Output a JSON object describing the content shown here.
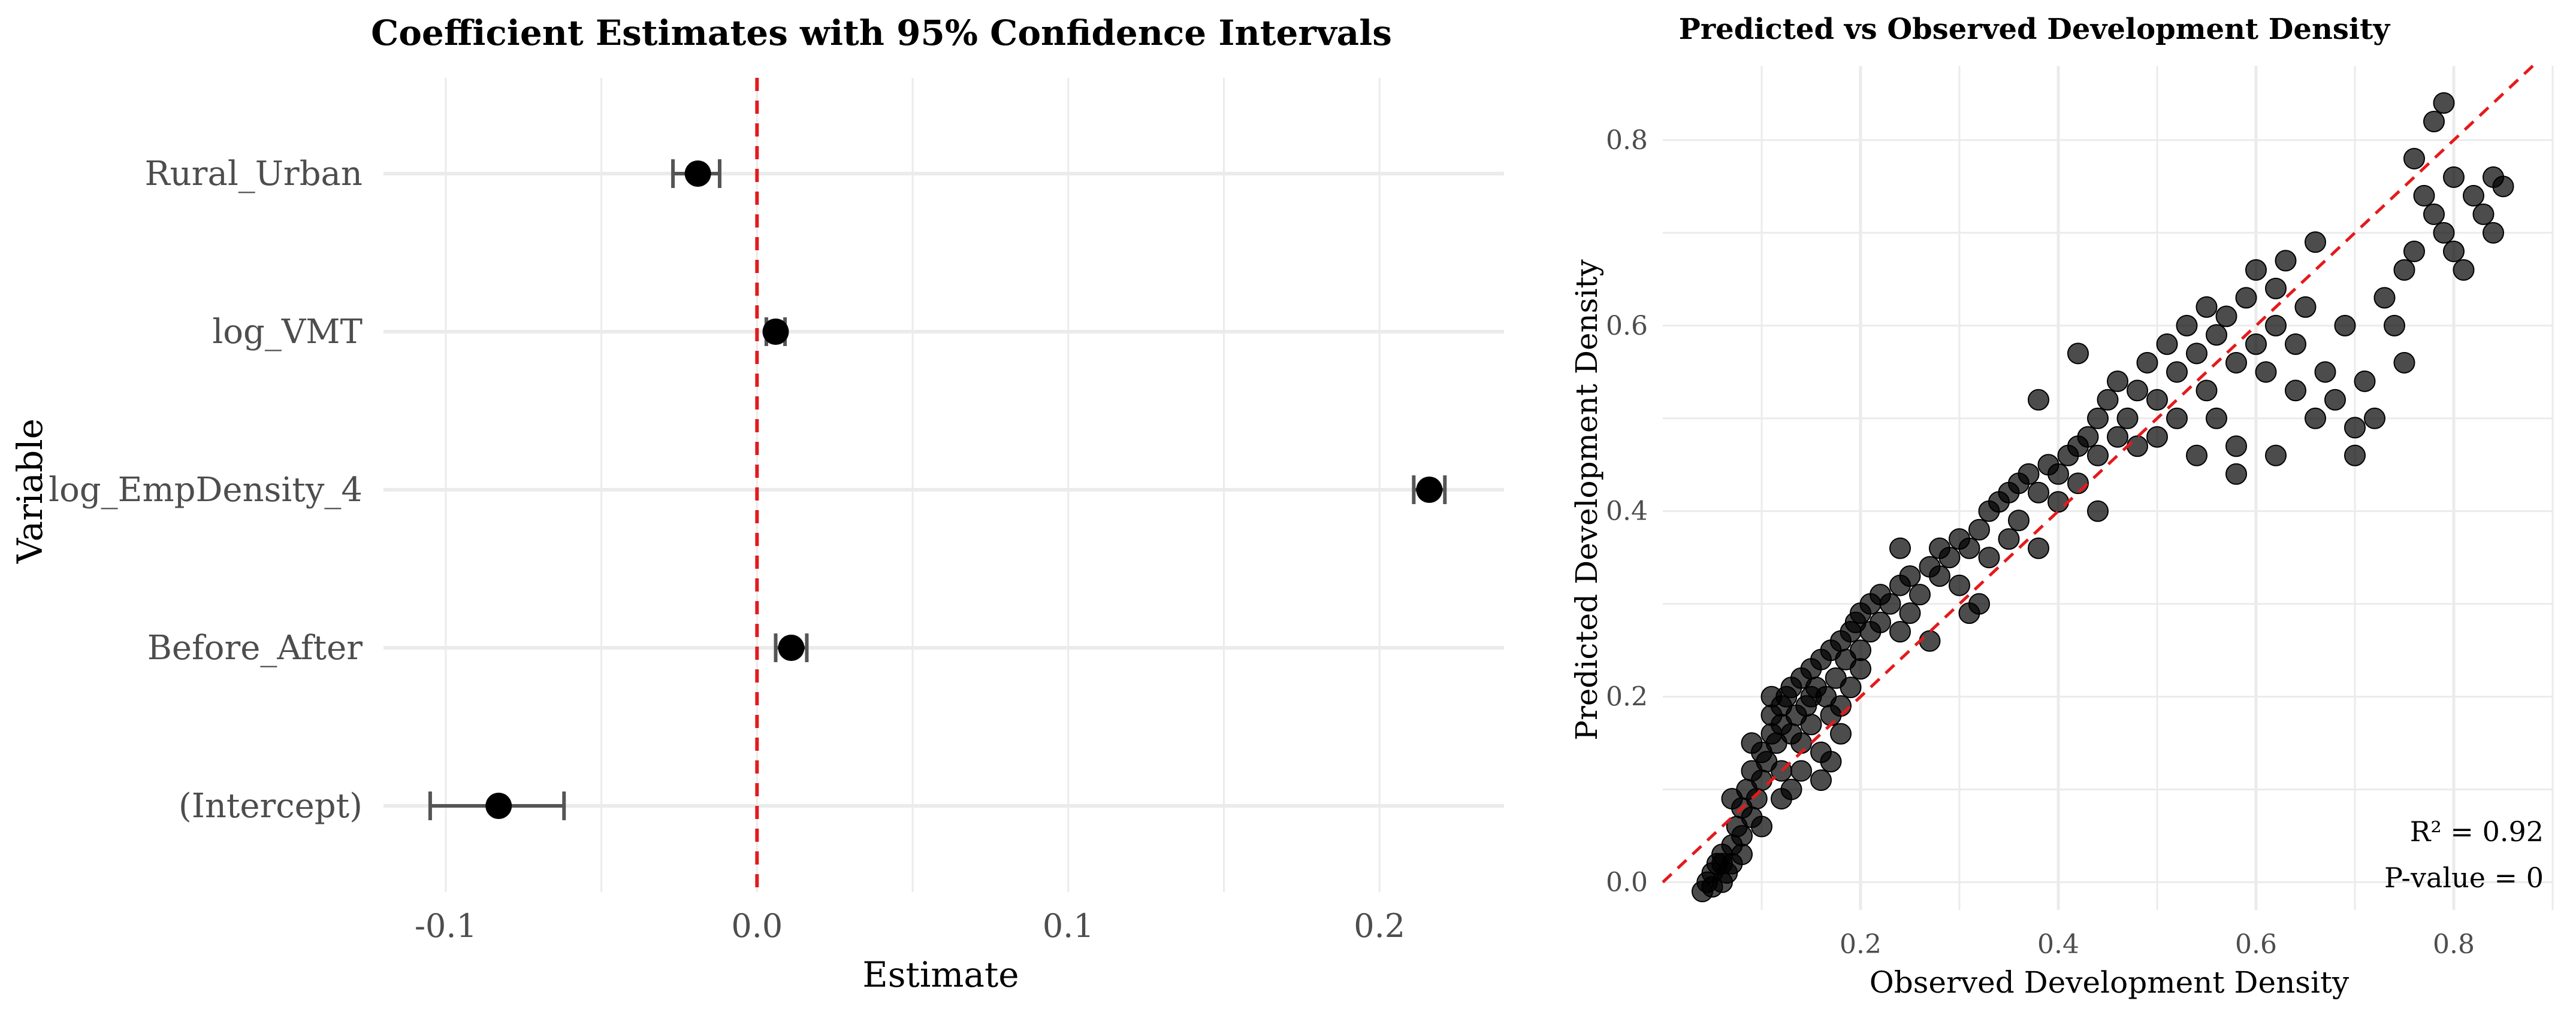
{
  "chart_data": [
    {
      "type": "errorbar",
      "title": "Coefficient Estimates with 95% Confidence Intervals",
      "xlabel": "Estimate",
      "ylabel": "Variable",
      "xlim": [
        -0.12,
        0.24
      ],
      "xticks": [
        -0.1,
        0.0,
        0.1,
        0.2
      ],
      "xtick_labels": [
        "-0.1",
        "0.0",
        "0.1",
        "0.2"
      ],
      "reference_line": {
        "x": 0,
        "style": "dashed",
        "color": "#e41a1c"
      },
      "categories": [
        "Rural_Urban",
        "log_VMT",
        "log_EmpDensity_4",
        "Before_After",
        "(Intercept)"
      ],
      "estimates": [
        -0.019,
        0.006,
        0.216,
        0.011,
        -0.083
      ],
      "ci_low": [
        -0.027,
        0.003,
        0.211,
        0.006,
        -0.105
      ],
      "ci_high": [
        -0.012,
        0.009,
        0.221,
        0.016,
        -0.062
      ],
      "grid": true
    },
    {
      "type": "scatter",
      "title": "Predicted vs Observed Development Density",
      "xlabel": "Observed Development Density",
      "ylabel": "Predicted Development Density",
      "xlim": [
        0.0,
        0.9
      ],
      "ylim": [
        -0.03,
        0.88
      ],
      "xticks": [
        0.2,
        0.4,
        0.6,
        0.8
      ],
      "xtick_labels": [
        "0.2",
        "0.4",
        "0.6",
        "0.8"
      ],
      "yticks": [
        0.0,
        0.2,
        0.4,
        0.6,
        0.8
      ],
      "ytick_labels": [
        "0.0",
        "0.2",
        "0.4",
        "0.6",
        "0.8"
      ],
      "reference_line": {
        "type": "y=x",
        "style": "dashed",
        "color": "#e41a1c"
      },
      "annotations": [
        "R² = 0.92",
        "P-value = 0"
      ],
      "point_color": "#000000",
      "point_alpha": 0.7,
      "points": [
        [
          0.04,
          -0.01
        ],
        [
          0.045,
          0.0
        ],
        [
          0.05,
          0.01
        ],
        [
          0.05,
          -0.005
        ],
        [
          0.055,
          0.02
        ],
        [
          0.06,
          0.0
        ],
        [
          0.06,
          0.03
        ],
        [
          0.065,
          0.01
        ],
        [
          0.07,
          0.04
        ],
        [
          0.07,
          0.02
        ],
        [
          0.075,
          0.06
        ],
        [
          0.08,
          0.05
        ],
        [
          0.08,
          0.08
        ],
        [
          0.085,
          0.1
        ],
        [
          0.09,
          0.07
        ],
        [
          0.09,
          0.12
        ],
        [
          0.095,
          0.09
        ],
        [
          0.1,
          0.11
        ],
        [
          0.1,
          0.14
        ],
        [
          0.105,
          0.13
        ],
        [
          0.11,
          0.16
        ],
        [
          0.11,
          0.18
        ],
        [
          0.115,
          0.15
        ],
        [
          0.12,
          0.19
        ],
        [
          0.12,
          0.17
        ],
        [
          0.125,
          0.2
        ],
        [
          0.13,
          0.16
        ],
        [
          0.13,
          0.21
        ],
        [
          0.135,
          0.18
        ],
        [
          0.14,
          0.22
        ],
        [
          0.14,
          0.15
        ],
        [
          0.145,
          0.19
        ],
        [
          0.15,
          0.23
        ],
        [
          0.15,
          0.17
        ],
        [
          0.155,
          0.21
        ],
        [
          0.16,
          0.24
        ],
        [
          0.16,
          0.14
        ],
        [
          0.165,
          0.2
        ],
        [
          0.17,
          0.25
        ],
        [
          0.17,
          0.13
        ],
        [
          0.175,
          0.22
        ],
        [
          0.18,
          0.26
        ],
        [
          0.18,
          0.19
        ],
        [
          0.185,
          0.24
        ],
        [
          0.19,
          0.27
        ],
        [
          0.19,
          0.21
        ],
        [
          0.195,
          0.28
        ],
        [
          0.2,
          0.25
        ],
        [
          0.2,
          0.29
        ],
        [
          0.21,
          0.3
        ],
        [
          0.21,
          0.27
        ],
        [
          0.22,
          0.31
        ],
        [
          0.22,
          0.28
        ],
        [
          0.23,
          0.3
        ],
        [
          0.24,
          0.32
        ],
        [
          0.24,
          0.27
        ],
        [
          0.25,
          0.33
        ],
        [
          0.25,
          0.29
        ],
        [
          0.26,
          0.31
        ],
        [
          0.27,
          0.34
        ],
        [
          0.27,
          0.26
        ],
        [
          0.28,
          0.33
        ],
        [
          0.28,
          0.36
        ],
        [
          0.29,
          0.35
        ],
        [
          0.3,
          0.37
        ],
        [
          0.3,
          0.32
        ],
        [
          0.31,
          0.36
        ],
        [
          0.32,
          0.38
        ],
        [
          0.32,
          0.3
        ],
        [
          0.33,
          0.4
        ],
        [
          0.33,
          0.35
        ],
        [
          0.34,
          0.41
        ],
        [
          0.35,
          0.42
        ],
        [
          0.35,
          0.37
        ],
        [
          0.36,
          0.43
        ],
        [
          0.36,
          0.39
        ],
        [
          0.37,
          0.44
        ],
        [
          0.38,
          0.42
        ],
        [
          0.38,
          0.36
        ],
        [
          0.39,
          0.45
        ],
        [
          0.4,
          0.44
        ],
        [
          0.4,
          0.41
        ],
        [
          0.41,
          0.46
        ],
        [
          0.42,
          0.47
        ],
        [
          0.42,
          0.43
        ],
        [
          0.43,
          0.48
        ],
        [
          0.44,
          0.5
        ],
        [
          0.44,
          0.46
        ],
        [
          0.45,
          0.52
        ],
        [
          0.46,
          0.48
        ],
        [
          0.46,
          0.54
        ],
        [
          0.47,
          0.5
        ],
        [
          0.48,
          0.53
        ],
        [
          0.48,
          0.47
        ],
        [
          0.49,
          0.56
        ],
        [
          0.5,
          0.52
        ],
        [
          0.5,
          0.48
        ],
        [
          0.51,
          0.58
        ],
        [
          0.52,
          0.55
        ],
        [
          0.52,
          0.5
        ],
        [
          0.53,
          0.6
        ],
        [
          0.54,
          0.57
        ],
        [
          0.54,
          0.46
        ],
        [
          0.55,
          0.62
        ],
        [
          0.56,
          0.59
        ],
        [
          0.56,
          0.5
        ],
        [
          0.57,
          0.61
        ],
        [
          0.58,
          0.47
        ],
        [
          0.58,
          0.56
        ],
        [
          0.59,
          0.63
        ],
        [
          0.6,
          0.58
        ],
        [
          0.6,
          0.66
        ],
        [
          0.61,
          0.55
        ],
        [
          0.62,
          0.64
        ],
        [
          0.62,
          0.6
        ],
        [
          0.63,
          0.67
        ],
        [
          0.64,
          0.58
        ],
        [
          0.64,
          0.53
        ],
        [
          0.65,
          0.62
        ],
        [
          0.66,
          0.69
        ],
        [
          0.66,
          0.5
        ],
        [
          0.67,
          0.55
        ],
        [
          0.68,
          0.52
        ],
        [
          0.69,
          0.6
        ],
        [
          0.7,
          0.49
        ],
        [
          0.7,
          0.46
        ],
        [
          0.71,
          0.54
        ],
        [
          0.72,
          0.5
        ],
        [
          0.73,
          0.63
        ],
        [
          0.74,
          0.6
        ],
        [
          0.75,
          0.66
        ],
        [
          0.75,
          0.56
        ],
        [
          0.76,
          0.78
        ],
        [
          0.76,
          0.68
        ],
        [
          0.77,
          0.74
        ],
        [
          0.78,
          0.72
        ],
        [
          0.78,
          0.82
        ],
        [
          0.79,
          0.7
        ],
        [
          0.8,
          0.68
        ],
        [
          0.8,
          0.76
        ],
        [
          0.81,
          0.66
        ],
        [
          0.82,
          0.74
        ],
        [
          0.83,
          0.72
        ],
        [
          0.84,
          0.76
        ],
        [
          0.84,
          0.7
        ],
        [
          0.85,
          0.75
        ],
        [
          0.79,
          0.84
        ],
        [
          0.38,
          0.52
        ],
        [
          0.42,
          0.57
        ],
        [
          0.55,
          0.53
        ],
        [
          0.58,
          0.44
        ],
        [
          0.62,
          0.46
        ],
        [
          0.44,
          0.4
        ],
        [
          0.31,
          0.29
        ],
        [
          0.16,
          0.11
        ],
        [
          0.12,
          0.09
        ],
        [
          0.14,
          0.12
        ],
        [
          0.18,
          0.16
        ],
        [
          0.2,
          0.23
        ],
        [
          0.24,
          0.36
        ],
        [
          0.06,
          0.02
        ],
        [
          0.07,
          0.09
        ],
        [
          0.08,
          0.03
        ],
        [
          0.09,
          0.15
        ],
        [
          0.1,
          0.06
        ],
        [
          0.11,
          0.2
        ],
        [
          0.12,
          0.12
        ],
        [
          0.13,
          0.1
        ],
        [
          0.15,
          0.2
        ],
        [
          0.17,
          0.18
        ]
      ]
    }
  ]
}
